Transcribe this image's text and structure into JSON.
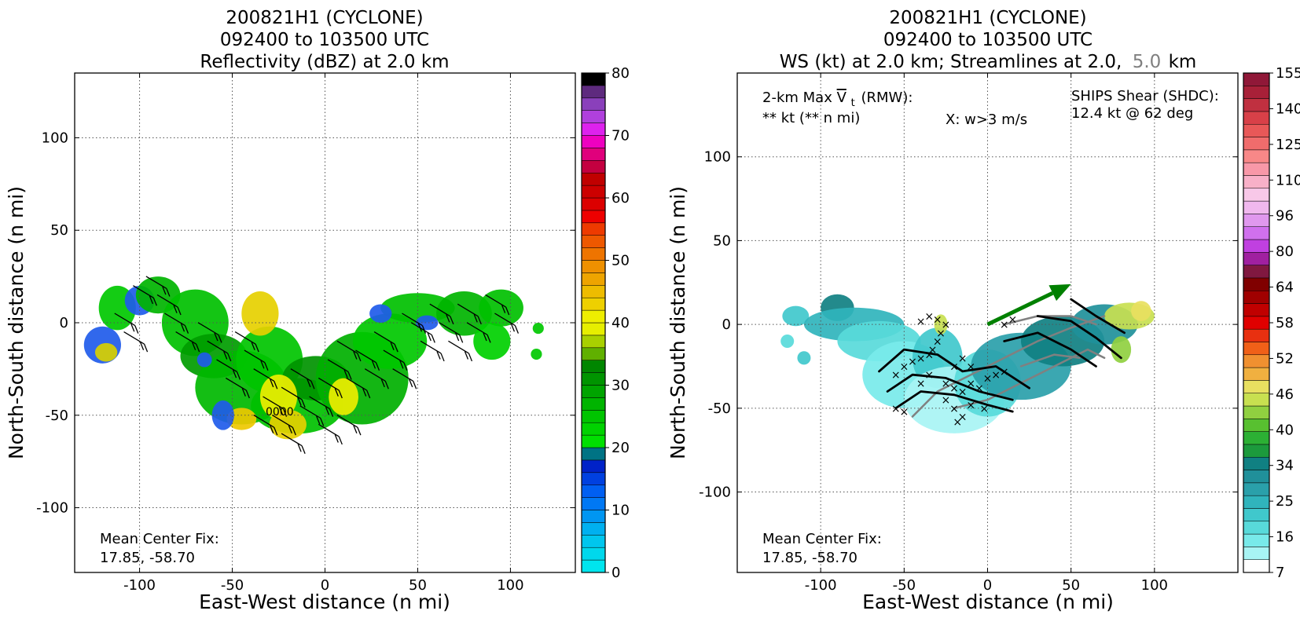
{
  "chart_data": [
    {
      "type": "heatmap",
      "title_lines": [
        "200821H1 (CYCLONE)",
        "092400 to 103500 UTC",
        "Reflectivity (dBZ) at 2.0 km"
      ],
      "xlabel": "East-West distance (n mi)",
      "ylabel": "North-South distance (n mi)",
      "xlim": [
        -135,
        135
      ],
      "ylim": [
        -135,
        135
      ],
      "xticks": [
        -100,
        -50,
        0,
        50,
        100
      ],
      "yticks": [
        -100,
        -50,
        0,
        50,
        100
      ],
      "grid": true,
      "annotation": {
        "line1": "Mean Center Fix:",
        "line2": "17.85, -58.70"
      },
      "faint_label": "0000",
      "colorbar": {
        "ticks": [
          "0",
          "10",
          "20",
          "30",
          "40",
          "50",
          "60",
          "70",
          "80"
        ],
        "min": 0,
        "max": 80,
        "colors": [
          "#00e5ee",
          "#00d8ec",
          "#00c6ee",
          "#00b0f0",
          "#0096f2",
          "#0078f4",
          "#005ff2",
          "#0040e0",
          "#0022c8",
          "#007384",
          "#00e000",
          "#00d200",
          "#00c400",
          "#00b400",
          "#00a400",
          "#009400",
          "#008600",
          "#60b000",
          "#a8d000",
          "#e6ee00",
          "#eeee00",
          "#eed000",
          "#eebc00",
          "#eea400",
          "#ee9000",
          "#ee7400",
          "#ee5800",
          "#ee3a00",
          "#ee0000",
          "#dc0000",
          "#cc0000",
          "#c00000",
          "#c40040",
          "#e0007c",
          "#ee00c0",
          "#dd22ee",
          "#b040dd",
          "#8a40bb",
          "#5e2a7e",
          "#000000"
        ]
      },
      "field_blobs": [
        {
          "cx": -120,
          "cy": -12,
          "rx": 10,
          "ry": 10,
          "color": "#1f5bea"
        },
        {
          "cx": -118,
          "cy": -16,
          "rx": 6,
          "ry": 5,
          "color": "#d7d000"
        },
        {
          "cx": -112,
          "cy": 8,
          "rx": 10,
          "ry": 12,
          "color": "#00c800"
        },
        {
          "cx": -100,
          "cy": 12,
          "rx": 8,
          "ry": 8,
          "color": "#1f5bea"
        },
        {
          "cx": -90,
          "cy": 15,
          "rx": 12,
          "ry": 10,
          "color": "#00b400"
        },
        {
          "cx": -70,
          "cy": 0,
          "rx": 18,
          "ry": 18,
          "color": "#00c000"
        },
        {
          "cx": -60,
          "cy": -18,
          "rx": 18,
          "ry": 12,
          "color": "#009c00"
        },
        {
          "cx": -45,
          "cy": -35,
          "rx": 25,
          "ry": 20,
          "color": "#00b800"
        },
        {
          "cx": -30,
          "cy": -20,
          "rx": 18,
          "ry": 18,
          "color": "#00c400"
        },
        {
          "cx": -35,
          "cy": 5,
          "rx": 10,
          "ry": 12,
          "color": "#e6d000"
        },
        {
          "cx": -15,
          "cy": -45,
          "rx": 25,
          "ry": 15,
          "color": "#00c000"
        },
        {
          "cx": -5,
          "cy": -30,
          "rx": 18,
          "ry": 12,
          "color": "#009400"
        },
        {
          "cx": 20,
          "cy": -30,
          "rx": 25,
          "ry": 25,
          "color": "#00b000"
        },
        {
          "cx": 35,
          "cy": -10,
          "rx": 20,
          "ry": 15,
          "color": "#00c800"
        },
        {
          "cx": 50,
          "cy": 8,
          "rx": 20,
          "ry": 8,
          "color": "#00c000"
        },
        {
          "cx": 75,
          "cy": 5,
          "rx": 15,
          "ry": 12,
          "color": "#00b400"
        },
        {
          "cx": 95,
          "cy": 8,
          "rx": 12,
          "ry": 10,
          "color": "#00c000"
        },
        {
          "cx": 90,
          "cy": -10,
          "rx": 10,
          "ry": 10,
          "color": "#00d000"
        },
        {
          "cx": 55,
          "cy": 0,
          "rx": 6,
          "ry": 4,
          "color": "#1f5bea"
        },
        {
          "cx": 30,
          "cy": 5,
          "rx": 6,
          "ry": 5,
          "color": "#1f5bea"
        },
        {
          "cx": -25,
          "cy": -40,
          "rx": 10,
          "ry": 12,
          "color": "#eeee00"
        },
        {
          "cx": 10,
          "cy": -40,
          "rx": 8,
          "ry": 10,
          "color": "#eeee00"
        },
        {
          "cx": -45,
          "cy": -52,
          "rx": 8,
          "ry": 6,
          "color": "#eec800"
        },
        {
          "cx": -20,
          "cy": -55,
          "rx": 10,
          "ry": 8,
          "color": "#e6d000"
        },
        {
          "cx": -55,
          "cy": -50,
          "rx": 6,
          "ry": 8,
          "color": "#1f5bea"
        },
        {
          "cx": -65,
          "cy": -20,
          "rx": 4,
          "ry": 4,
          "color": "#1f5bea"
        },
        {
          "cx": 115,
          "cy": -3,
          "rx": 3,
          "ry": 3,
          "color": "#00c800"
        },
        {
          "cx": 114,
          "cy": -17,
          "rx": 3,
          "ry": 3,
          "color": "#00c800"
        }
      ],
      "barbs": [
        [
          -105,
          0
        ],
        [
          -100,
          -10
        ],
        [
          -95,
          15
        ],
        [
          -88,
          20
        ],
        [
          -82,
          10
        ],
        [
          -78,
          0
        ],
        [
          -72,
          -10
        ],
        [
          -60,
          -5
        ],
        [
          -55,
          -15
        ],
        [
          -50,
          -25
        ],
        [
          -45,
          -35
        ],
        [
          -40,
          -10
        ],
        [
          -35,
          -20
        ],
        [
          -30,
          -30
        ],
        [
          -25,
          -45
        ],
        [
          -20,
          -55
        ],
        [
          -15,
          -40
        ],
        [
          -10,
          -30
        ],
        [
          -5,
          -50
        ],
        [
          0,
          -45
        ],
        [
          5,
          -35
        ],
        [
          10,
          -25
        ],
        [
          15,
          -15
        ],
        [
          20,
          -35
        ],
        [
          25,
          -20
        ],
        [
          30,
          -30
        ],
        [
          35,
          -10
        ],
        [
          40,
          -20
        ],
        [
          45,
          -30
        ],
        [
          50,
          0
        ],
        [
          55,
          -5
        ],
        [
          60,
          -15
        ],
        [
          65,
          5
        ],
        [
          70,
          -5
        ],
        [
          75,
          -15
        ],
        [
          80,
          5
        ],
        [
          85,
          -5
        ],
        [
          95,
          10
        ],
        [
          100,
          0
        ],
        [
          -30,
          -55
        ],
        [
          -15,
          -65
        ],
        [
          5,
          -60
        ],
        [
          15,
          -55
        ]
      ]
    },
    {
      "type": "heatmap",
      "title_lines": [
        "200821H1 (CYCLONE)",
        "092400 to 103500 UTC"
      ],
      "title3_left": "WS (kt) at 2.0 km; Streamlines at 2.0,",
      "title3_gray": "5.0",
      "title3_right": "km",
      "xlabel": "East-West distance (n mi)",
      "ylabel": "North-South distance (n mi)",
      "xlim": [
        -150,
        150
      ],
      "ylim": [
        -148,
        150
      ],
      "xticks": [
        -100,
        -50,
        0,
        50,
        100
      ],
      "yticks": [
        -100,
        -50,
        0,
        50,
        100
      ],
      "grid": true,
      "maxvt_prefix": "2-km Max",
      "maxvt_symbol": "V",
      "maxvt_sub": "t",
      "maxvt_suffix": "(RMW):",
      "maxvt_value": "** kt (** n mi)",
      "w_note": "X: w>3 m/s",
      "shear_label": "SHIPS Shear (SHDC):",
      "shear_value": "12.4 kt @ 62 deg",
      "shear_color": "#008000",
      "annotation": {
        "line1": "Mean Center Fix:",
        "line2": "17.85, -58.70"
      },
      "colorbar": {
        "ticks": [
          "7",
          "16",
          "25",
          "34",
          "40",
          "46",
          "52",
          "58",
          "64",
          "80",
          "96",
          "110",
          "125",
          "140",
          "155"
        ],
        "colors": [
          "#ffffff",
          "#a8f4f4",
          "#78eaea",
          "#58dada",
          "#40c8cc",
          "#30b4bc",
          "#2aa0aa",
          "#20909a",
          "#108082",
          "#1c9a3c",
          "#2cb034",
          "#58c030",
          "#90d040",
          "#c8e050",
          "#e8e060",
          "#f0b040",
          "#f09030",
          "#f06018",
          "#e83010",
          "#e00000",
          "#c00000",
          "#a00000",
          "#800000",
          "#801840",
          "#a020a0",
          "#c040e0",
          "#d070ee",
          "#e098ee",
          "#f0b8ee",
          "#f8c8e8",
          "#f8b0c8",
          "#f898a8",
          "#f88888",
          "#f06c6c",
          "#e85858",
          "#d84048",
          "#c03040",
          "#a82038",
          "#901838"
        ]
      },
      "field_blobs": [
        {
          "cx": -115,
          "cy": 5,
          "rx": 8,
          "ry": 6,
          "color": "#40c8cc"
        },
        {
          "cx": -90,
          "cy": 10,
          "rx": 10,
          "ry": 8,
          "color": "#108082"
        },
        {
          "cx": -80,
          "cy": 0,
          "rx": 30,
          "ry": 10,
          "color": "#30b4bc"
        },
        {
          "cx": -65,
          "cy": -10,
          "rx": 25,
          "ry": 12,
          "color": "#58dada"
        },
        {
          "cx": -50,
          "cy": -30,
          "rx": 25,
          "ry": 20,
          "color": "#78eaea"
        },
        {
          "cx": -30,
          "cy": -20,
          "rx": 15,
          "ry": 18,
          "color": "#40c8cc"
        },
        {
          "cx": -20,
          "cy": -45,
          "rx": 30,
          "ry": 20,
          "color": "#a8f4f4"
        },
        {
          "cx": 0,
          "cy": -35,
          "rx": 20,
          "ry": 20,
          "color": "#58dada"
        },
        {
          "cx": 20,
          "cy": -25,
          "rx": 30,
          "ry": 20,
          "color": "#2aa0aa"
        },
        {
          "cx": 45,
          "cy": -10,
          "rx": 25,
          "ry": 15,
          "color": "#108082"
        },
        {
          "cx": 70,
          "cy": 0,
          "rx": 20,
          "ry": 12,
          "color": "#20909a"
        },
        {
          "cx": 85,
          "cy": 5,
          "rx": 15,
          "ry": 8,
          "color": "#c8e050"
        },
        {
          "cx": 92,
          "cy": 8,
          "rx": 6,
          "ry": 6,
          "color": "#e8e060"
        },
        {
          "cx": 80,
          "cy": -15,
          "rx": 6,
          "ry": 8,
          "color": "#90d040"
        },
        {
          "cx": -28,
          "cy": 0,
          "rx": 4,
          "ry": 6,
          "color": "#c8e050"
        },
        {
          "cx": -110,
          "cy": -20,
          "rx": 4,
          "ry": 4,
          "color": "#40c8cc"
        },
        {
          "cx": -120,
          "cy": -10,
          "rx": 4,
          "ry": 4,
          "color": "#58dada"
        }
      ],
      "shear_arrow": {
        "x1": 0,
        "y1": 0,
        "x2": 50,
        "y2": 24
      },
      "streamlines_black": [
        [
          [
            -65,
            -28
          ],
          [
            -50,
            -15
          ],
          [
            -30,
            -18
          ],
          [
            -15,
            -28
          ],
          [
            5,
            -25
          ],
          [
            25,
            -38
          ]
        ],
        [
          [
            -60,
            -40
          ],
          [
            -45,
            -30
          ],
          [
            -25,
            -32
          ],
          [
            -5,
            -40
          ],
          [
            15,
            -45
          ]
        ],
        [
          [
            -55,
            -50
          ],
          [
            -40,
            -40
          ],
          [
            -20,
            -42
          ],
          [
            0,
            -48
          ],
          [
            15,
            -52
          ]
        ],
        [
          [
            10,
            -10
          ],
          [
            30,
            -5
          ],
          [
            50,
            -15
          ],
          [
            65,
            -25
          ]
        ],
        [
          [
            30,
            5
          ],
          [
            50,
            2
          ],
          [
            65,
            -8
          ],
          [
            80,
            -20
          ]
        ],
        [
          [
            50,
            15
          ],
          [
            65,
            5
          ],
          [
            82,
            -5
          ]
        ]
      ],
      "streamlines_gray": [
        [
          [
            -45,
            -55
          ],
          [
            -30,
            -40
          ],
          [
            -10,
            -30
          ],
          [
            10,
            -20
          ],
          [
            30,
            -10
          ],
          [
            50,
            -2
          ],
          [
            70,
            5
          ]
        ],
        [
          [
            -20,
            -50
          ],
          [
            0,
            -45
          ],
          [
            20,
            -35
          ],
          [
            40,
            -25
          ],
          [
            60,
            -15
          ],
          [
            70,
            -20
          ]
        ],
        [
          [
            10,
            0
          ],
          [
            30,
            5
          ],
          [
            50,
            5
          ],
          [
            65,
            0
          ]
        ],
        [
          [
            20,
            -25
          ],
          [
            40,
            -18
          ],
          [
            55,
            -20
          ]
        ]
      ],
      "x_marks": [
        [
          -55,
          -30
        ],
        [
          -50,
          -25
        ],
        [
          -45,
          -22
        ],
        [
          -40,
          -20
        ],
        [
          -35,
          -18
        ],
        [
          -30,
          -10
        ],
        [
          -28,
          -5
        ],
        [
          -25,
          0
        ],
        [
          -30,
          3
        ],
        [
          -35,
          5
        ],
        [
          -40,
          2
        ],
        [
          -33,
          -15
        ],
        [
          -20,
          -25
        ],
        [
          -15,
          -20
        ],
        [
          -10,
          -25
        ],
        [
          -25,
          -35
        ],
        [
          -20,
          -38
        ],
        [
          -15,
          -40
        ],
        [
          -10,
          -35
        ],
        [
          -25,
          -45
        ],
        [
          -20,
          -50
        ],
        [
          -15,
          -55
        ],
        [
          -18,
          -58
        ],
        [
          -10,
          -48
        ],
        [
          -5,
          -38
        ],
        [
          0,
          -32
        ],
        [
          5,
          -30
        ],
        [
          10,
          -28
        ],
        [
          -55,
          -50
        ],
        [
          -50,
          -52
        ],
        [
          10,
          0
        ],
        [
          15,
          3
        ],
        [
          -2,
          -50
        ],
        [
          -40,
          -35
        ],
        [
          -35,
          -30
        ]
      ]
    }
  ]
}
